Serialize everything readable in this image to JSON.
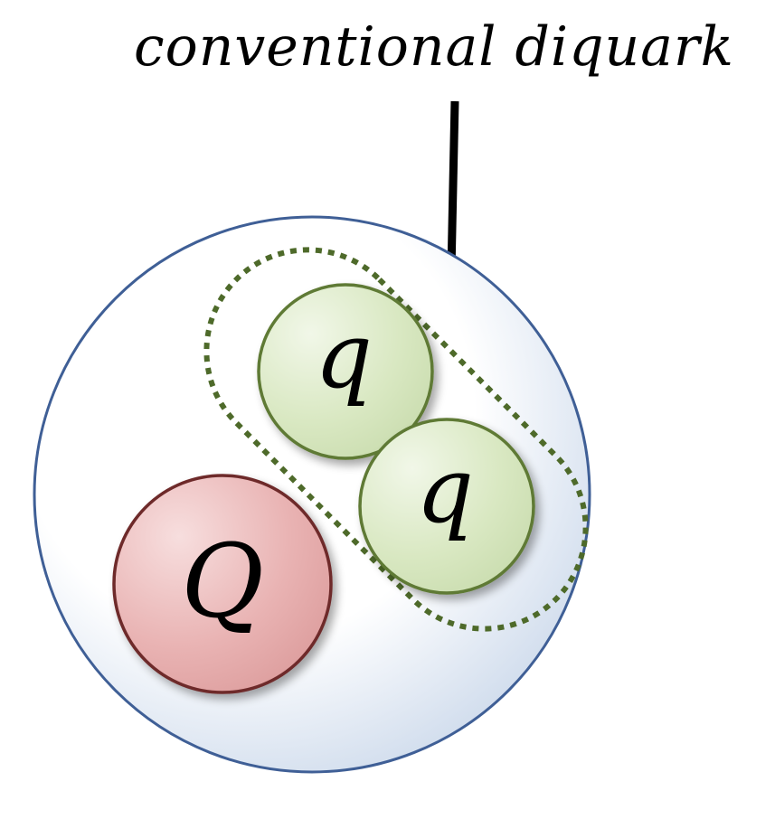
{
  "caption": "conventional diquark",
  "particles": {
    "heavy_quark": {
      "symbol": "Q"
    },
    "light_quark_1": {
      "symbol": "q"
    },
    "light_quark_2": {
      "symbol": "q"
    }
  },
  "colors": {
    "outer_circle_stroke": "#3f5f96",
    "heavy_quark_stroke": "#6e2a2a",
    "light_quark_stroke": "#5e7a34",
    "diquark_outline": "#4e6a2a",
    "arrow": "#000000"
  }
}
